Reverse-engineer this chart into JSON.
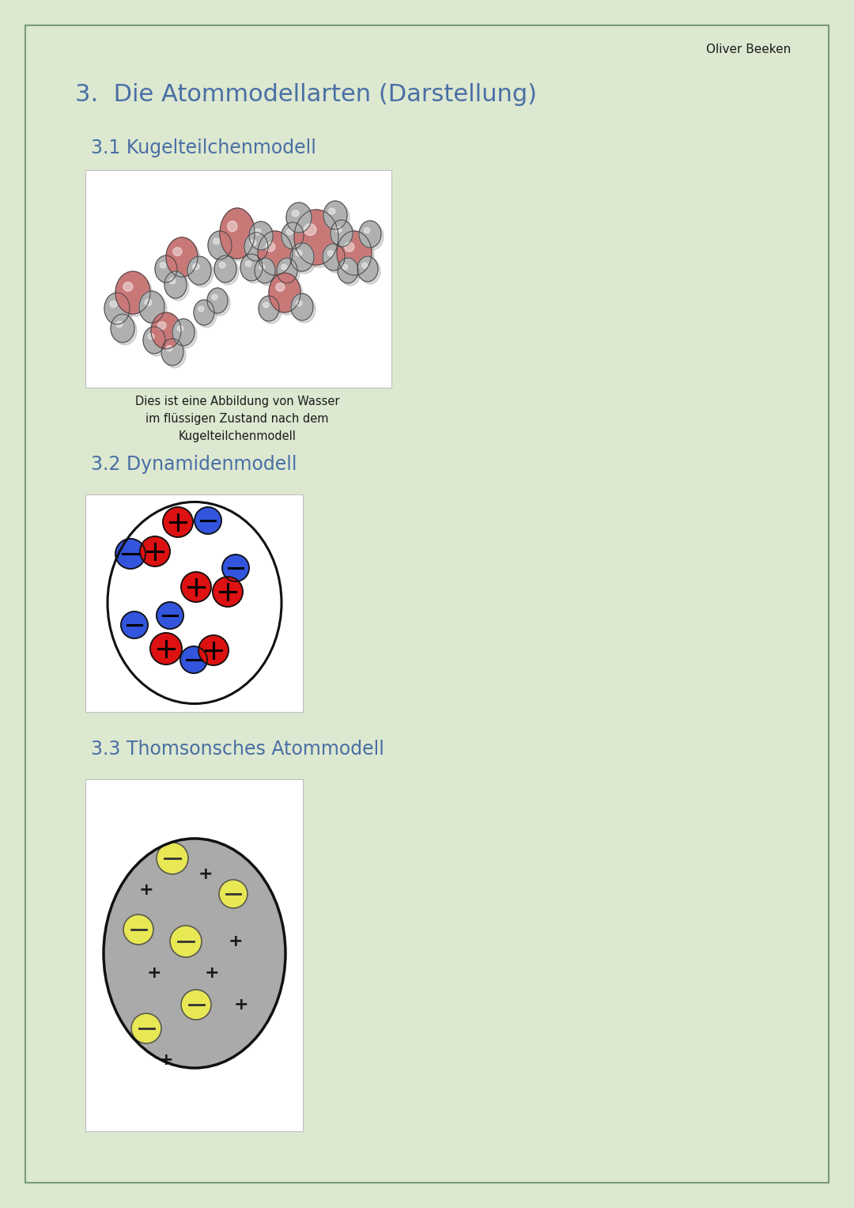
{
  "bg_color": "#dce8d0",
  "border_color": "#7a9b7a",
  "header_author": "Oliver Beeken",
  "title": "3.  Die Atommodellarten (Darstellung)",
  "title_color": "#4a6fa5",
  "subtitle1": "3.1 Kugelteilchenmodell",
  "subtitle1_color": "#4a6fa5",
  "caption1": "Dies ist eine Abbildung von Wasser\nim flüssigen Zustand nach dem\nKugelteilchenmodell",
  "subtitle2": "3.2 Dynamidenmodell",
  "subtitle2_color": "#4a6fa5",
  "subtitle3": "3.3 Thomsonsches Atommodell",
  "subtitle3_color": "#4a6fa5",
  "pink_color": "#c97878",
  "gray_color": "#b0b0b0",
  "red_color": "#dd1111",
  "blue_color": "#3355dd",
  "yellow_color": "#e8e855",
  "thomson_gray": "#aaaaaa",
  "white": "#ffffff",
  "black": "#111111"
}
